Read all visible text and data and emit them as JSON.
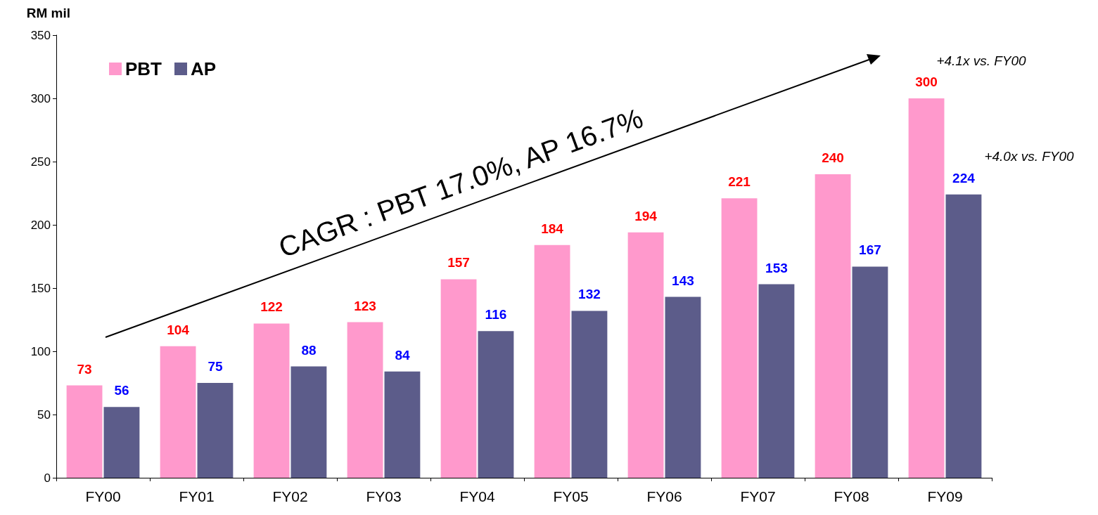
{
  "chart_data": {
    "type": "bar",
    "ylabel": "RM mil",
    "categories": [
      "FY00",
      "FY01",
      "FY02",
      "FY03",
      "FY04",
      "FY05",
      "FY06",
      "FY07",
      "FY08",
      "FY09"
    ],
    "series": [
      {
        "name": "PBT",
        "color": "#ff99cc",
        "values": [
          73,
          104,
          122,
          123,
          157,
          184,
          194,
          221,
          240,
          300
        ]
      },
      {
        "name": "AP",
        "color": "#5c5c8a",
        "values": [
          56,
          75,
          88,
          84,
          116,
          132,
          143,
          153,
          167,
          224
        ]
      }
    ],
    "ylim": [
      0,
      350
    ],
    "yticks": [
      0,
      50,
      100,
      150,
      200,
      250,
      300,
      350
    ],
    "grid": false,
    "legend": "top left",
    "data_labels": true,
    "annotations": [
      "CAGR : PBT 17.0%, AP 16.7%",
      "+4.1x vs. FY00",
      "+4.0x vs. FY00"
    ]
  }
}
